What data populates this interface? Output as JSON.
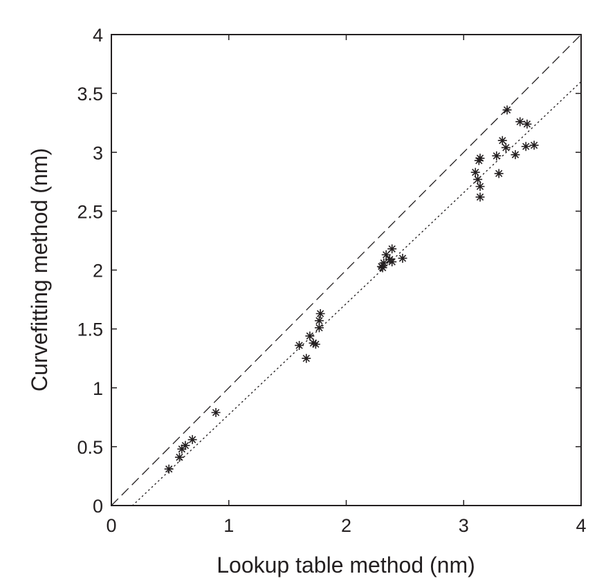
{
  "chart_data": {
    "type": "scatter",
    "title": "",
    "xlabel": "Lookup table method (nm)",
    "ylabel": "Curvefitting method (nm)",
    "xlim": [
      0,
      4
    ],
    "ylim": [
      0,
      4
    ],
    "xticks": [
      0,
      1,
      2,
      3,
      4
    ],
    "yticks": [
      0,
      0.5,
      1,
      1.5,
      2,
      2.5,
      3,
      3.5,
      4
    ],
    "xtick_labels": [
      "0",
      "1",
      "2",
      "3",
      "4"
    ],
    "ytick_labels": [
      "0",
      "0.5",
      "1",
      "1.5",
      "2",
      "2.5",
      "3",
      "3.5",
      "4"
    ],
    "grid": false,
    "marker": "asterisk",
    "reference_lines": [
      {
        "style": "dashed",
        "x": [
          0,
          4
        ],
        "y": [
          0,
          4
        ]
      },
      {
        "style": "dotted",
        "x": [
          0.18,
          4
        ],
        "y": [
          0,
          3.6
        ]
      }
    ],
    "series": [
      {
        "points": [
          [
            0.49,
            0.31
          ],
          [
            0.58,
            0.41
          ],
          [
            0.6,
            0.48
          ],
          [
            0.63,
            0.51
          ],
          [
            0.69,
            0.56
          ],
          [
            0.89,
            0.79
          ],
          [
            1.6,
            1.36
          ],
          [
            1.66,
            1.25
          ],
          [
            1.69,
            1.44
          ],
          [
            1.72,
            1.38
          ],
          [
            1.74,
            1.37
          ],
          [
            1.77,
            1.51
          ],
          [
            1.77,
            1.57
          ],
          [
            1.78,
            1.63
          ],
          [
            2.3,
            2.03
          ],
          [
            2.31,
            2.02
          ],
          [
            2.32,
            2.06
          ],
          [
            2.34,
            2.13
          ],
          [
            2.37,
            2.09
          ],
          [
            2.39,
            2.07
          ],
          [
            2.39,
            2.18
          ],
          [
            2.48,
            2.1
          ],
          [
            3.1,
            2.83
          ],
          [
            3.12,
            2.77
          ],
          [
            3.13,
            2.93
          ],
          [
            3.14,
            2.95
          ],
          [
            3.14,
            2.71
          ],
          [
            3.14,
            2.62
          ],
          [
            3.28,
            2.97
          ],
          [
            3.3,
            2.82
          ],
          [
            3.33,
            3.1
          ],
          [
            3.36,
            3.04
          ],
          [
            3.37,
            3.36
          ],
          [
            3.44,
            2.98
          ],
          [
            3.48,
            3.26
          ],
          [
            3.53,
            3.05
          ],
          [
            3.54,
            3.24
          ],
          [
            3.6,
            3.06
          ]
        ]
      }
    ]
  }
}
